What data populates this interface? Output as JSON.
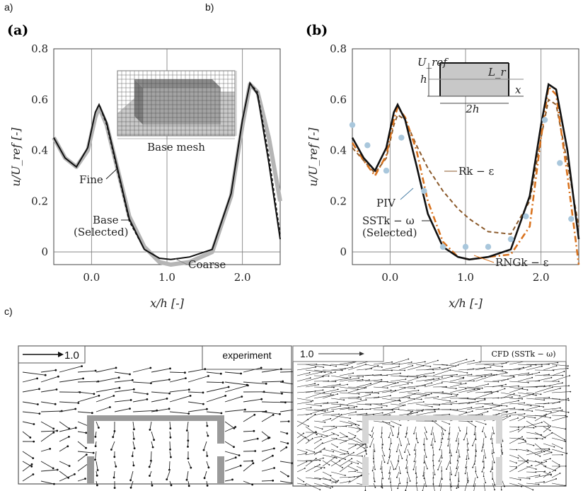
{
  "panel_labels": {
    "a": "a)",
    "b": "b)",
    "c": "c)"
  },
  "chart_data": [
    {
      "type": "line",
      "panel": "(a)",
      "xlabel": "x/h [-]",
      "ylabel": "u/U_ref [-]",
      "xlim": [
        -0.5,
        2.5
      ],
      "ylim": [
        -0.05,
        0.8
      ],
      "xticks": [
        "0.0",
        "1.0",
        "2.0"
      ],
      "yticks": [
        "0.8",
        "0.6",
        "0.4",
        "0.2",
        "0"
      ],
      "inset_caption": "Base mesh",
      "series": [
        {
          "name": "Coarse",
          "x": [
            -0.5,
            -0.35,
            -0.2,
            -0.05,
            0.05,
            0.1,
            0.2,
            0.35,
            0.5,
            0.7,
            0.9,
            1.05,
            1.3,
            1.6,
            1.85,
            2.0,
            2.1,
            2.2,
            2.35,
            2.5
          ],
          "y": [
            0.45,
            0.37,
            0.335,
            0.4,
            0.53,
            0.57,
            0.5,
            0.32,
            0.14,
            0.02,
            -0.04,
            -0.05,
            -0.04,
            0.0,
            0.22,
            0.5,
            0.66,
            0.63,
            0.45,
            0.2
          ]
        },
        {
          "name": "Fine",
          "x": [
            -0.5,
            -0.35,
            -0.2,
            -0.05,
            0.05,
            0.1,
            0.2,
            0.35,
            0.5,
            0.7,
            0.9,
            1.05,
            1.3,
            1.6,
            1.85,
            2.0,
            2.1,
            2.2,
            2.35,
            2.5
          ],
          "y": [
            0.45,
            0.37,
            0.335,
            0.41,
            0.55,
            0.58,
            0.5,
            0.31,
            0.12,
            0.01,
            -0.025,
            -0.03,
            -0.02,
            0.01,
            0.23,
            0.52,
            0.665,
            0.63,
            0.38,
            0.07
          ]
        },
        {
          "name": "Base (Selected)",
          "x": [
            -0.5,
            -0.35,
            -0.2,
            -0.05,
            0.05,
            0.1,
            0.2,
            0.35,
            0.5,
            0.7,
            0.9,
            1.05,
            1.3,
            1.6,
            1.85,
            2.0,
            2.1,
            2.2,
            2.35,
            2.5
          ],
          "y": [
            0.45,
            0.37,
            0.335,
            0.41,
            0.55,
            0.58,
            0.51,
            0.32,
            0.13,
            0.01,
            -0.025,
            -0.03,
            -0.02,
            0.01,
            0.23,
            0.52,
            0.665,
            0.62,
            0.35,
            0.05
          ]
        }
      ],
      "annotations": [
        "Fine",
        "Base",
        "(Selected)",
        "Coarse"
      ]
    },
    {
      "type": "line",
      "panel": "(b)",
      "xlabel": "x/h [-]",
      "ylabel": "u/U_ref [-]",
      "xlim": [
        -0.5,
        2.5
      ],
      "ylim": [
        -0.05,
        0.8
      ],
      "xticks": [
        "0.0",
        "1.0",
        "2.0"
      ],
      "yticks": [
        "0.8",
        "0.6",
        "0.4",
        "0.2",
        "0"
      ],
      "inset": {
        "labels": [
          "U_ref",
          "h",
          "L_r",
          "x",
          "2h"
        ]
      },
      "series": [
        {
          "name": "SSTk − ω (Selected)",
          "x": [
            -0.5,
            -0.35,
            -0.2,
            -0.05,
            0.05,
            0.1,
            0.2,
            0.35,
            0.5,
            0.7,
            0.9,
            1.05,
            1.3,
            1.6,
            1.85,
            2.0,
            2.1,
            2.2,
            2.35,
            2.5
          ],
          "y": [
            0.45,
            0.37,
            0.32,
            0.41,
            0.55,
            0.58,
            0.52,
            0.34,
            0.15,
            0.02,
            -0.02,
            -0.03,
            -0.02,
            0.01,
            0.22,
            0.5,
            0.66,
            0.64,
            0.4,
            0.05
          ]
        },
        {
          "name": "RNGk − ε",
          "x": [
            -0.5,
            -0.35,
            -0.2,
            -0.05,
            0.05,
            0.1,
            0.2,
            0.35,
            0.5,
            0.7,
            0.9,
            1.05,
            1.3,
            1.6,
            1.85,
            2.0,
            2.1,
            2.2,
            2.35,
            2.5
          ],
          "y": [
            0.43,
            0.36,
            0.3,
            0.38,
            0.52,
            0.57,
            0.53,
            0.4,
            0.2,
            0.04,
            -0.02,
            -0.03,
            -0.02,
            -0.01,
            0.1,
            0.45,
            0.65,
            0.62,
            0.3,
            -0.05
          ]
        },
        {
          "name": "Rk − ε",
          "x": [
            -0.5,
            -0.35,
            -0.2,
            -0.05,
            0.05,
            0.1,
            0.2,
            0.35,
            0.5,
            0.7,
            0.9,
            1.05,
            1.3,
            1.6,
            1.85,
            2.0,
            2.1,
            2.2,
            2.35,
            2.5
          ],
          "y": [
            0.41,
            0.36,
            0.31,
            0.37,
            0.5,
            0.54,
            0.52,
            0.42,
            0.33,
            0.24,
            0.17,
            0.13,
            0.08,
            0.07,
            0.2,
            0.45,
            0.6,
            0.58,
            0.35,
            0.1
          ]
        },
        {
          "name": "PIV",
          "style": "scatter",
          "x": [
            -0.5,
            -0.3,
            -0.05,
            0.15,
            0.45,
            0.7,
            1.0,
            1.3,
            1.6,
            1.8,
            2.05,
            2.25,
            2.4
          ],
          "y": [
            0.5,
            0.42,
            0.32,
            0.45,
            0.24,
            0.02,
            0.02,
            0.02,
            0.05,
            0.14,
            0.52,
            0.35,
            0.13
          ]
        }
      ],
      "annotations": [
        "Rk − ε",
        "PIV",
        "SSTk − ω",
        "(Selected)",
        "RNGk − ε"
      ]
    }
  ],
  "vector_panels": {
    "left": {
      "title": "experiment",
      "scale": "1.0"
    },
    "right": {
      "title": "CFD (SSTk − ω)",
      "scale": "1.0"
    }
  },
  "colors": {
    "coarse": "#b5b5b5",
    "base": "#111111",
    "rng": "#d9731f",
    "rke": "#8b5a2b",
    "piv": "#a9c7dc",
    "pivtext": "#4a7fa6"
  }
}
